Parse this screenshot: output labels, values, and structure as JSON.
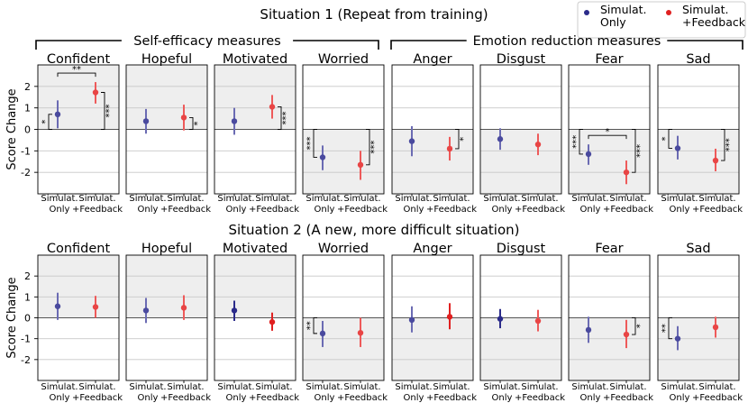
{
  "legend": [
    {
      "label_lines": [
        "Simulat.",
        "Only"
      ],
      "color": "#2b2b8a"
    },
    {
      "label_lines": [
        "Simulat.",
        "+Feedback"
      ],
      "color": "#e02020"
    }
  ],
  "group_labels": [
    "Self-efficacy measures",
    "Emotion reduction measures"
  ],
  "y_axis_label": "Score Change",
  "y_ticks": [
    2,
    1,
    0,
    -1,
    -2
  ],
  "x_tick_lines": [
    [
      "Simulat.",
      "Only"
    ],
    [
      "Simulat.",
      "+Feedback"
    ]
  ],
  "chart_data": [
    {
      "type": "point-errorbar",
      "title": "Situation 1 (Repeat from training)",
      "ylabel": "Score Change",
      "ylim": [
        -3,
        3
      ],
      "categories": [
        "Simulat. Only",
        "Simulat. +Feedback"
      ],
      "panels": [
        {
          "title": "Confident",
          "shade": "top",
          "means": [
            0.7,
            1.72
          ],
          "ci_low": [
            0.05,
            1.2
          ],
          "ci_high": [
            1.35,
            2.2
          ],
          "faded": [
            true,
            true
          ],
          "sig": [
            {
              "type": "zero",
              "cat": 0,
              "label": "*"
            },
            {
              "type": "zero",
              "cat": 1,
              "label": "***"
            },
            {
              "type": "between",
              "label": "**"
            }
          ]
        },
        {
          "title": "Hopeful",
          "shade": "top",
          "means": [
            0.38,
            0.55
          ],
          "ci_low": [
            -0.2,
            -0.05
          ],
          "ci_high": [
            0.95,
            1.15
          ],
          "faded": [
            true,
            true
          ],
          "sig": [
            {
              "type": "zero",
              "cat": 1,
              "label": "*"
            }
          ]
        },
        {
          "title": "Motivated",
          "shade": "top",
          "means": [
            0.38,
            1.05
          ],
          "ci_low": [
            -0.25,
            0.5
          ],
          "ci_high": [
            1.0,
            1.6
          ],
          "faded": [
            true,
            true
          ],
          "sig": [
            {
              "type": "zero",
              "cat": 1,
              "label": "***"
            }
          ]
        },
        {
          "title": "Worried",
          "shade": "bottom",
          "means": [
            -1.3,
            -1.65
          ],
          "ci_low": [
            -1.9,
            -2.35
          ],
          "ci_high": [
            -0.75,
            -1.0
          ],
          "faded": [
            true,
            true
          ],
          "sig": [
            {
              "type": "zero",
              "cat": 0,
              "label": "***"
            },
            {
              "type": "zero",
              "cat": 1,
              "label": "***"
            }
          ]
        },
        {
          "title": "Anger",
          "shade": "bottom",
          "means": [
            -0.55,
            -0.9
          ],
          "ci_low": [
            -1.25,
            -1.45
          ],
          "ci_high": [
            0.15,
            -0.35
          ],
          "faded": [
            true,
            true
          ],
          "sig": [
            {
              "type": "zero",
              "cat": 1,
              "label": "*"
            }
          ]
        },
        {
          "title": "Disgust",
          "shade": "bottom",
          "means": [
            -0.45,
            -0.7
          ],
          "ci_low": [
            -0.95,
            -1.2
          ],
          "ci_high": [
            0.05,
            -0.2
          ],
          "faded": [
            true,
            true
          ],
          "sig": []
        },
        {
          "title": "Fear",
          "shade": "bottom",
          "means": [
            -1.15,
            -2.0
          ],
          "ci_low": [
            -1.65,
            -2.55
          ],
          "ci_high": [
            -0.7,
            -1.45
          ],
          "faded": [
            true,
            true
          ],
          "sig": [
            {
              "type": "zero",
              "cat": 0,
              "label": "***"
            },
            {
              "type": "zero",
              "cat": 1,
              "label": "***"
            },
            {
              "type": "between",
              "label": "*"
            }
          ]
        },
        {
          "title": "Sad",
          "shade": "bottom",
          "means": [
            -0.88,
            -1.45
          ],
          "ci_low": [
            -1.4,
            -1.95
          ],
          "ci_high": [
            -0.3,
            -0.9
          ],
          "faded": [
            true,
            true
          ],
          "sig": [
            {
              "type": "zero",
              "cat": 0,
              "label": "*"
            },
            {
              "type": "zero",
              "cat": 1,
              "label": "***"
            }
          ]
        }
      ]
    },
    {
      "type": "point-errorbar",
      "title": "Situation 2 (A new, more difficult situation)",
      "ylabel": "Score Change",
      "ylim": [
        -3,
        3
      ],
      "categories": [
        "Simulat. Only",
        "Simulat. +Feedback"
      ],
      "panels": [
        {
          "title": "Confident",
          "shade": "top",
          "means": [
            0.55,
            0.52
          ],
          "ci_low": [
            -0.1,
            0.0
          ],
          "ci_high": [
            1.2,
            1.05
          ],
          "faded": [
            true,
            true
          ],
          "sig": []
        },
        {
          "title": "Hopeful",
          "shade": "top",
          "means": [
            0.35,
            0.48
          ],
          "ci_low": [
            -0.25,
            -0.1
          ],
          "ci_high": [
            0.95,
            1.08
          ],
          "faded": [
            true,
            true
          ],
          "sig": []
        },
        {
          "title": "Motivated",
          "shade": "top",
          "means": [
            0.35,
            -0.2
          ],
          "ci_low": [
            -0.15,
            -0.62
          ],
          "ci_high": [
            0.82,
            0.25
          ],
          "faded": [
            false,
            false
          ],
          "sig": []
        },
        {
          "title": "Worried",
          "shade": "bottom",
          "means": [
            -0.75,
            -0.72
          ],
          "ci_low": [
            -1.4,
            -1.4
          ],
          "ci_high": [
            -0.15,
            0.0
          ],
          "faded": [
            true,
            true
          ],
          "sig": [
            {
              "type": "zero",
              "cat": 0,
              "label": "**"
            }
          ]
        },
        {
          "title": "Anger",
          "shade": "bottom",
          "means": [
            -0.1,
            0.05
          ],
          "ci_low": [
            -0.7,
            -0.55
          ],
          "ci_high": [
            0.55,
            0.7
          ],
          "faded": [
            true,
            false
          ],
          "sig": []
        },
        {
          "title": "Disgust",
          "shade": "bottom",
          "means": [
            -0.05,
            -0.15
          ],
          "ci_low": [
            -0.5,
            -0.65
          ],
          "ci_high": [
            0.42,
            0.38
          ],
          "faded": [
            false,
            true
          ],
          "sig": []
        },
        {
          "title": "Fear",
          "shade": "bottom",
          "means": [
            -0.58,
            -0.8
          ],
          "ci_low": [
            -1.2,
            -1.45
          ],
          "ci_high": [
            0.05,
            -0.1
          ],
          "faded": [
            true,
            true
          ],
          "sig": [
            {
              "type": "zero",
              "cat": 1,
              "label": "*"
            }
          ]
        },
        {
          "title": "Sad",
          "shade": "bottom",
          "means": [
            -1.0,
            -0.45
          ],
          "ci_low": [
            -1.55,
            -0.95
          ],
          "ci_high": [
            -0.4,
            0.05
          ],
          "faded": [
            true,
            true
          ],
          "sig": [
            {
              "type": "zero",
              "cat": 0,
              "label": "**"
            }
          ]
        }
      ]
    }
  ]
}
